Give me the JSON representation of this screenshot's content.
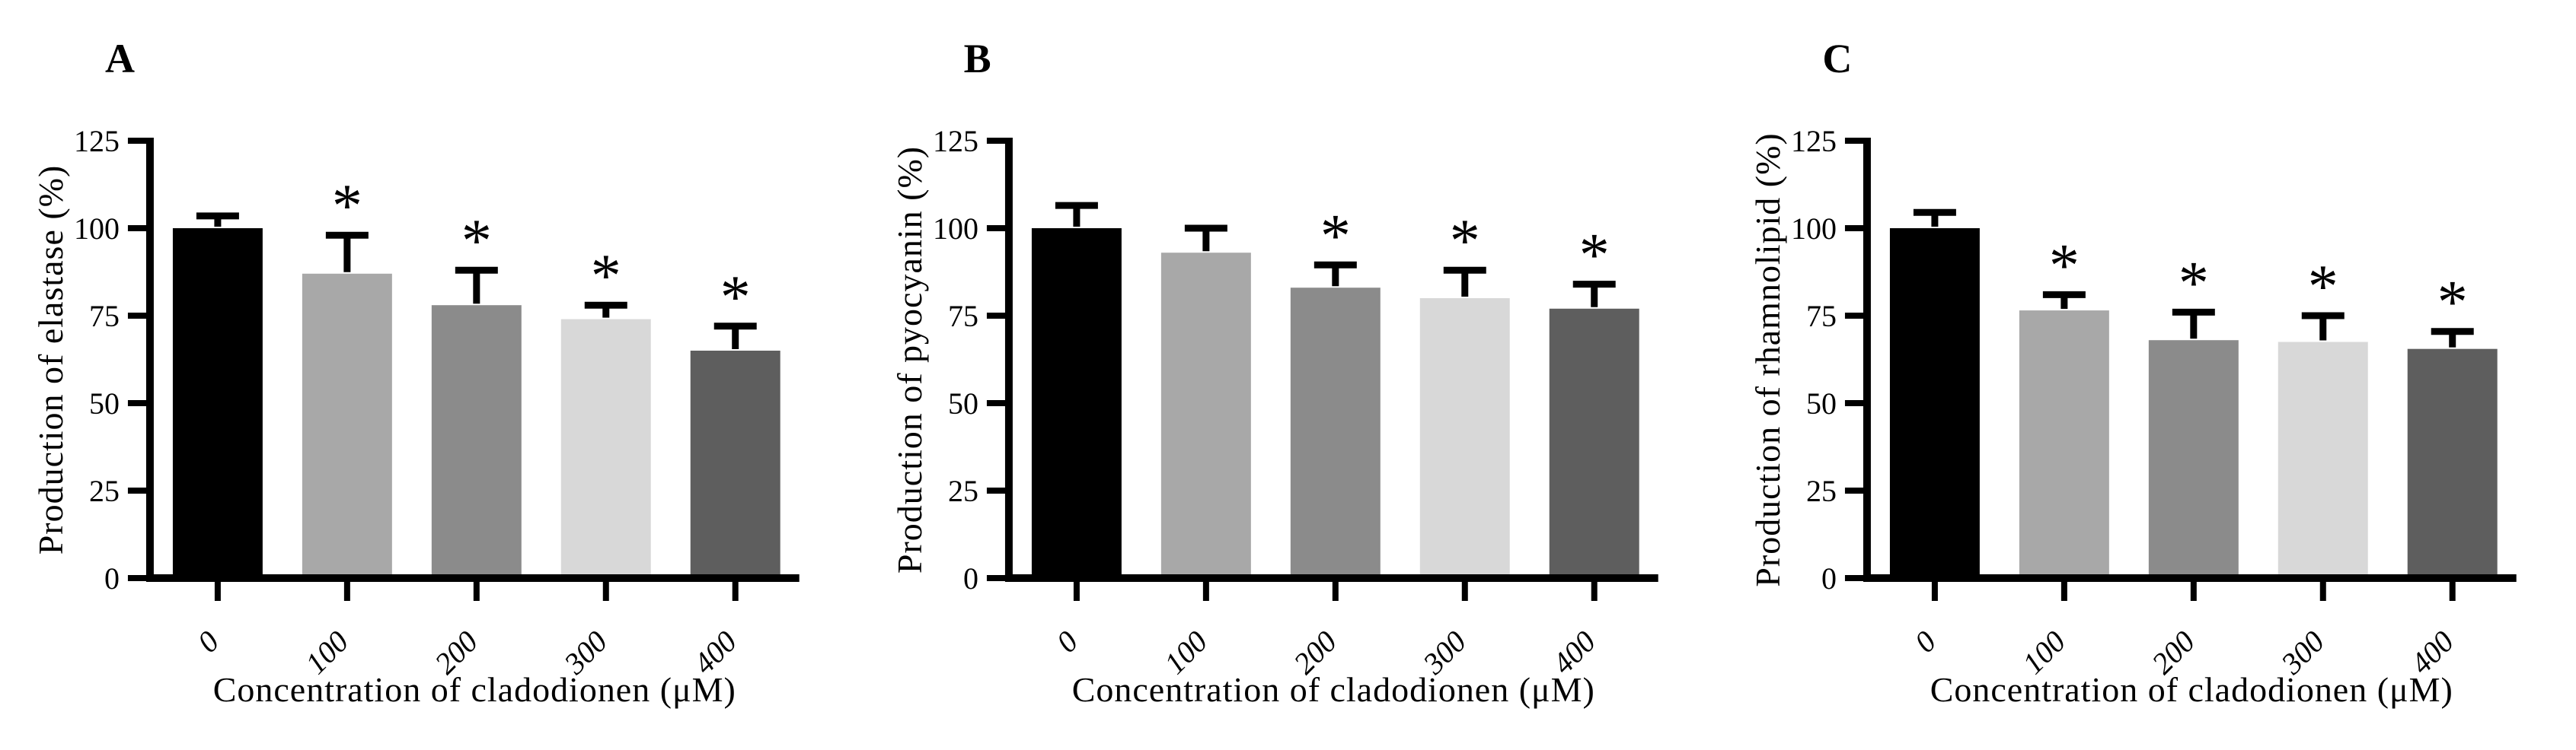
{
  "chart_data": [
    {
      "type": "bar",
      "panel_label": "A",
      "ylabel": "Production of elastase (%)",
      "xlabel": "Concentration of cladodionen (μM)",
      "categories": [
        "0",
        "100",
        "200",
        "300",
        "400"
      ],
      "values": [
        100,
        87,
        78,
        74,
        65
      ],
      "errors": [
        3.5,
        11,
        10,
        4,
        7
      ],
      "significant": [
        false,
        true,
        true,
        true,
        true
      ],
      "sig_symbol": "*",
      "bar_colors": [
        "#000000",
        "#a8a8a8",
        "#8b8b8b",
        "#d8d8d8",
        "#5e5e5e"
      ],
      "ylim": [
        0,
        125
      ],
      "yticks": [
        0,
        25,
        50,
        75,
        100,
        125
      ],
      "grid": false
    },
    {
      "type": "bar",
      "panel_label": "B",
      "ylabel": "Production of pyocyanin (%)",
      "xlabel": "Concentration of cladodionen (μM)",
      "categories": [
        "0",
        "100",
        "200",
        "300",
        "400"
      ],
      "values": [
        100,
        93,
        83,
        80,
        77
      ],
      "errors": [
        6.5,
        7,
        6.5,
        8,
        7
      ],
      "significant": [
        false,
        false,
        true,
        true,
        true
      ],
      "sig_symbol": "*",
      "bar_colors": [
        "#000000",
        "#a8a8a8",
        "#8b8b8b",
        "#d8d8d8",
        "#5e5e5e"
      ],
      "ylim": [
        0,
        125
      ],
      "yticks": [
        0,
        25,
        50,
        75,
        100,
        125
      ],
      "grid": false
    },
    {
      "type": "bar",
      "panel_label": "C",
      "ylabel": "Production of rhamnolipid (%)",
      "xlabel": "Concentration of cladodionen (μM)",
      "categories": [
        "0",
        "100",
        "200",
        "300",
        "400"
      ],
      "values": [
        100,
        76.5,
        68,
        67.5,
        65.5
      ],
      "errors": [
        4.5,
        4.5,
        8,
        7.5,
        5
      ],
      "significant": [
        false,
        true,
        true,
        true,
        true
      ],
      "sig_symbol": "*",
      "bar_colors": [
        "#000000",
        "#a8a8a8",
        "#8b8b8b",
        "#d8d8d8",
        "#5e5e5e"
      ],
      "ylim": [
        0,
        125
      ],
      "yticks": [
        0,
        25,
        50,
        75,
        100,
        125
      ],
      "grid": false
    }
  ]
}
